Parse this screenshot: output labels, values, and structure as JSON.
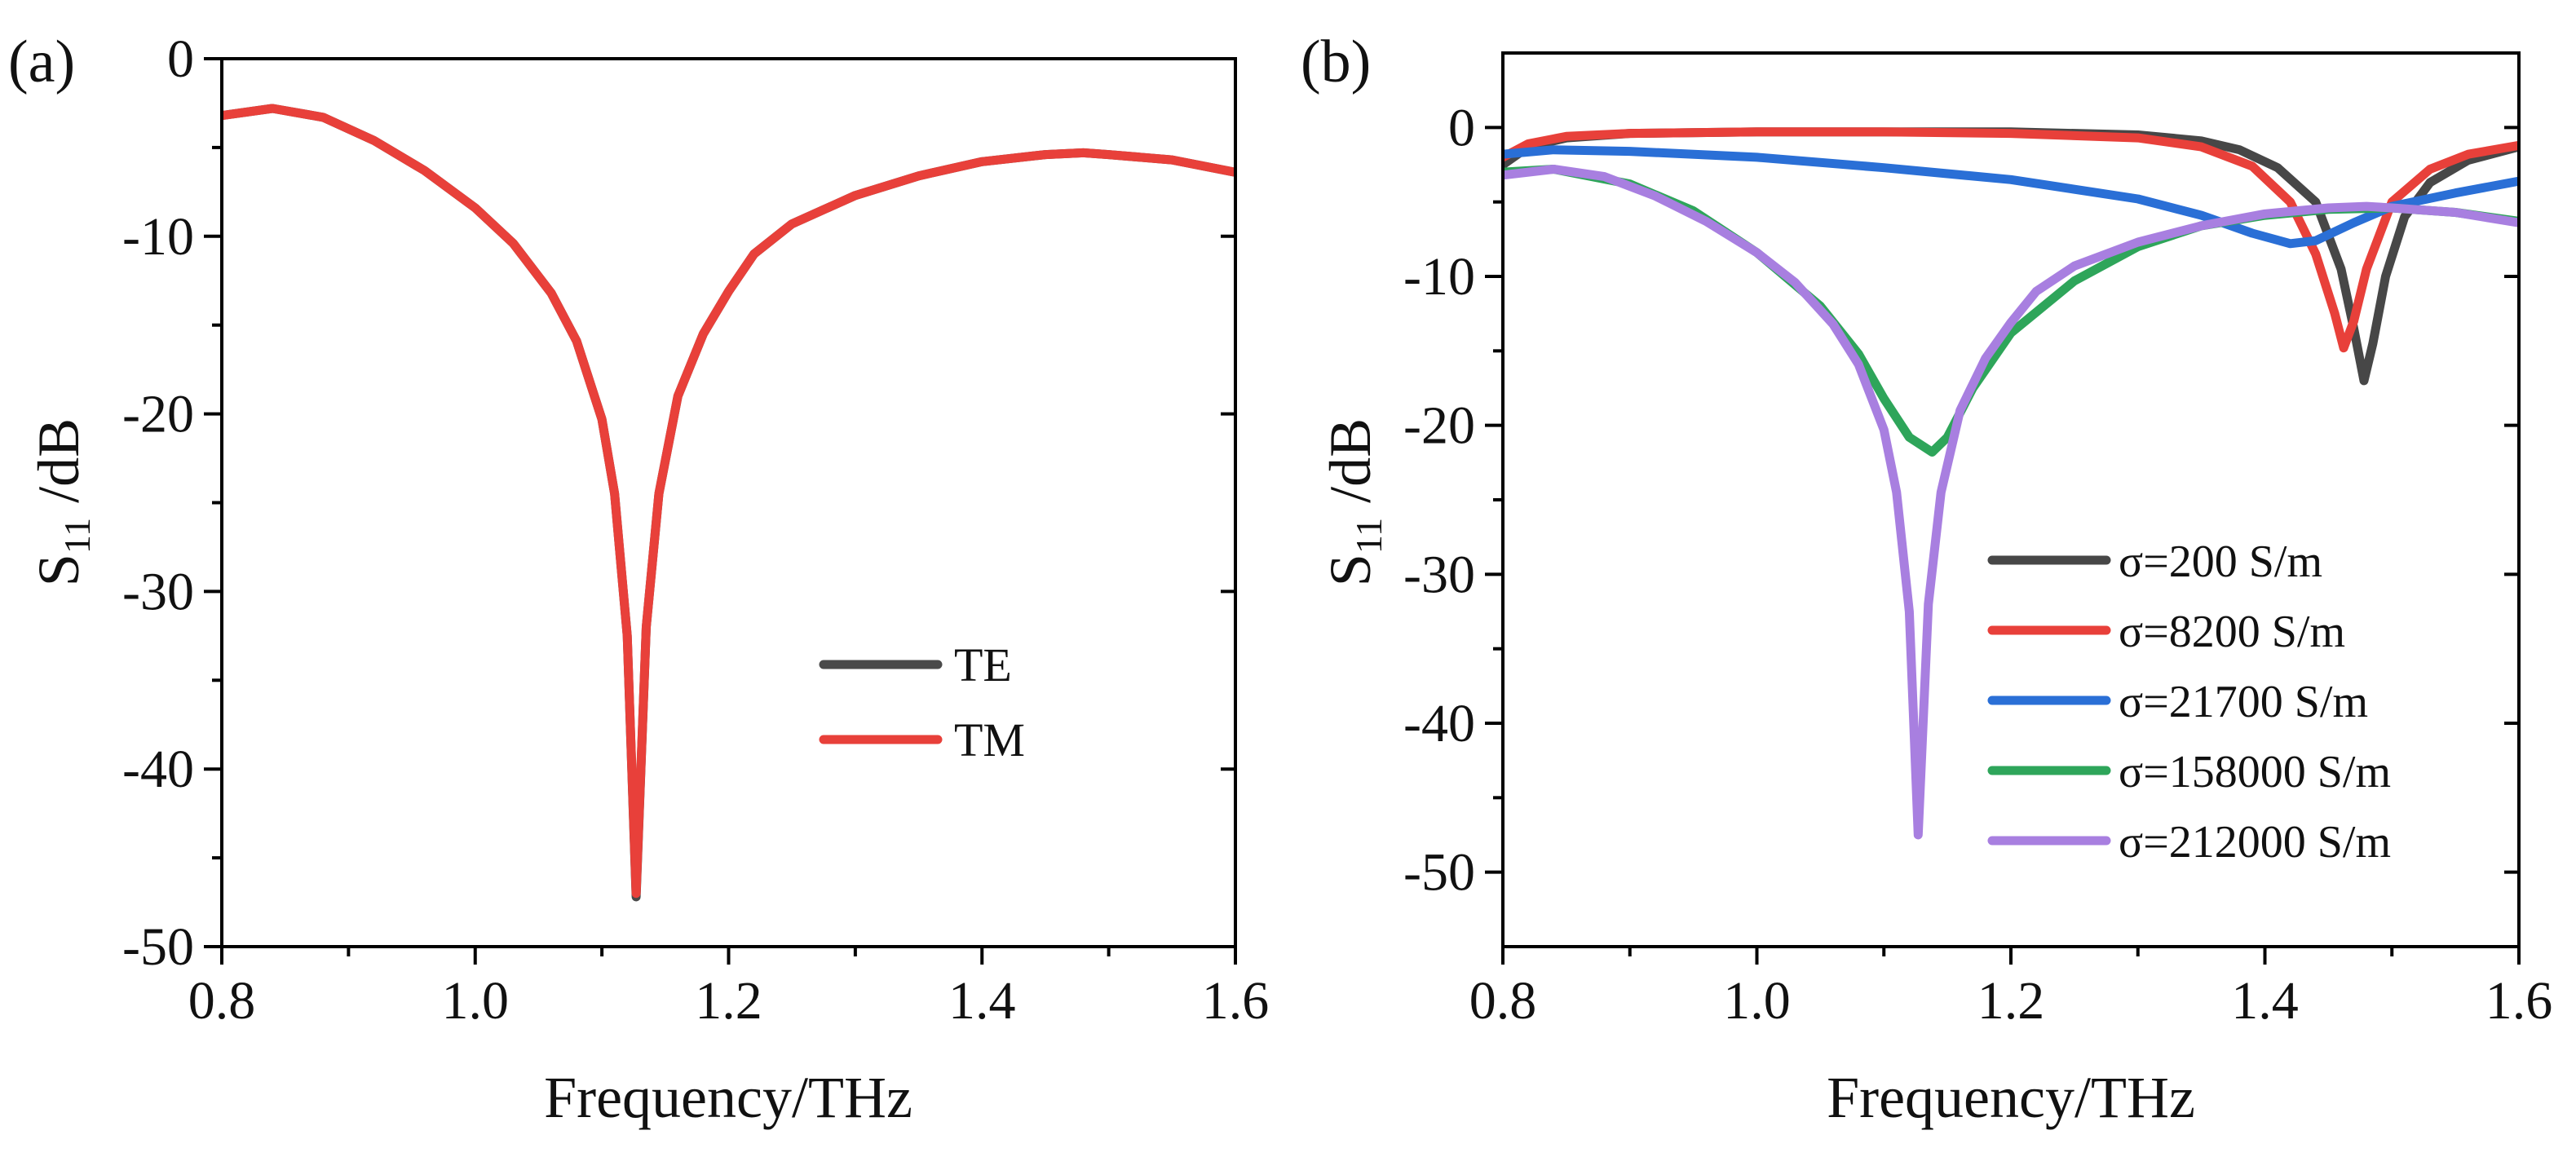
{
  "chart_data": [
    {
      "panel": "(a)",
      "type": "line",
      "title": "",
      "xlabel": "Frequency/THz",
      "ylabel": "S11 /dB",
      "ylabel_parts": {
        "main": "S",
        "sub": "11",
        "rest": " /dB"
      },
      "xlim": [
        0.8,
        1.6
      ],
      "ylim": [
        -50,
        0
      ],
      "xticks": [
        0.8,
        1.0,
        1.2,
        1.4,
        1.6
      ],
      "xtick_labels": [
        "0.8",
        "1.0",
        "1.2",
        "1.4",
        "1.6"
      ],
      "yticks": [
        0,
        -10,
        -20,
        -30,
        -40,
        -50
      ],
      "ytick_labels": [
        "0",
        "-10",
        "-20",
        "-30",
        "-40",
        "-50"
      ],
      "grid": false,
      "legend_position": "lower-right",
      "series": [
        {
          "name": "TE",
          "color": "#4a4a4a",
          "points": [
            [
              0.8,
              -3.2
            ],
            [
              0.84,
              -2.8
            ],
            [
              0.88,
              -3.3
            ],
            [
              0.92,
              -4.6
            ],
            [
              0.96,
              -6.3
            ],
            [
              1.0,
              -8.4
            ],
            [
              1.03,
              -10.4
            ],
            [
              1.06,
              -13.2
            ],
            [
              1.08,
              -15.9
            ],
            [
              1.1,
              -20.3
            ],
            [
              1.11,
              -24.5
            ],
            [
              1.12,
              -32.5
            ],
            [
              1.127,
              -47.2
            ],
            [
              1.135,
              -32.0
            ],
            [
              1.145,
              -24.5
            ],
            [
              1.16,
              -19.0
            ],
            [
              1.18,
              -15.5
            ],
            [
              1.2,
              -13.1
            ],
            [
              1.22,
              -11.0
            ],
            [
              1.25,
              -9.3
            ],
            [
              1.3,
              -7.7
            ],
            [
              1.35,
              -6.6
            ],
            [
              1.4,
              -5.8
            ],
            [
              1.45,
              -5.4
            ],
            [
              1.48,
              -5.3
            ],
            [
              1.5,
              -5.4
            ],
            [
              1.55,
              -5.7
            ],
            [
              1.6,
              -6.4
            ]
          ]
        },
        {
          "name": "TM",
          "color": "#e8403a",
          "points": [
            [
              0.8,
              -3.2
            ],
            [
              0.84,
              -2.8
            ],
            [
              0.88,
              -3.3
            ],
            [
              0.92,
              -4.6
            ],
            [
              0.96,
              -6.3
            ],
            [
              1.0,
              -8.4
            ],
            [
              1.03,
              -10.4
            ],
            [
              1.06,
              -13.2
            ],
            [
              1.08,
              -15.9
            ],
            [
              1.1,
              -20.3
            ],
            [
              1.11,
              -24.5
            ],
            [
              1.12,
              -32.5
            ],
            [
              1.127,
              -47.0
            ],
            [
              1.135,
              -32.0
            ],
            [
              1.145,
              -24.5
            ],
            [
              1.16,
              -19.0
            ],
            [
              1.18,
              -15.5
            ],
            [
              1.2,
              -13.1
            ],
            [
              1.22,
              -11.0
            ],
            [
              1.25,
              -9.3
            ],
            [
              1.3,
              -7.7
            ],
            [
              1.35,
              -6.6
            ],
            [
              1.4,
              -5.8
            ],
            [
              1.45,
              -5.4
            ],
            [
              1.48,
              -5.3
            ],
            [
              1.5,
              -5.4
            ],
            [
              1.55,
              -5.7
            ],
            [
              1.6,
              -6.4
            ]
          ]
        }
      ]
    },
    {
      "panel": "(b)",
      "type": "line",
      "title": "",
      "xlabel": "Frequency/THz",
      "ylabel": "S11 /dB",
      "ylabel_parts": {
        "main": "S",
        "sub": "11",
        "rest": " /dB"
      },
      "xlim": [
        0.8,
        1.6
      ],
      "ylim": [
        -55,
        5
      ],
      "xticks": [
        0.8,
        1.0,
        1.2,
        1.4,
        1.6
      ],
      "xtick_labels": [
        "0.8",
        "1.0",
        "1.2",
        "1.4",
        "1.6"
      ],
      "yticks": [
        0,
        -10,
        -20,
        -30,
        -40,
        -50
      ],
      "ytick_labels": [
        "0",
        "-10",
        "-20",
        "-30",
        "-40",
        "-50"
      ],
      "grid": false,
      "legend_position": "lower-right",
      "series": [
        {
          "name": "σ=200 S/m",
          "color": "#474747",
          "points": [
            [
              0.8,
              -2.5
            ],
            [
              0.82,
              -1.3
            ],
            [
              0.85,
              -0.7
            ],
            [
              0.9,
              -0.4
            ],
            [
              1.0,
              -0.3
            ],
            [
              1.1,
              -0.3
            ],
            [
              1.2,
              -0.3
            ],
            [
              1.3,
              -0.5
            ],
            [
              1.35,
              -0.9
            ],
            [
              1.38,
              -1.5
            ],
            [
              1.41,
              -2.7
            ],
            [
              1.44,
              -5.0
            ],
            [
              1.46,
              -9.5
            ],
            [
              1.47,
              -13.5
            ],
            [
              1.478,
              -17.0
            ],
            [
              1.485,
              -14.5
            ],
            [
              1.495,
              -10.0
            ],
            [
              1.51,
              -6.0
            ],
            [
              1.53,
              -3.7
            ],
            [
              1.56,
              -2.2
            ],
            [
              1.6,
              -1.3
            ]
          ]
        },
        {
          "name": "σ=8200 S/m",
          "color": "#e8403a",
          "points": [
            [
              0.8,
              -2.0
            ],
            [
              0.82,
              -1.1
            ],
            [
              0.85,
              -0.6
            ],
            [
              0.9,
              -0.4
            ],
            [
              1.0,
              -0.3
            ],
            [
              1.1,
              -0.3
            ],
            [
              1.2,
              -0.4
            ],
            [
              1.3,
              -0.7
            ],
            [
              1.35,
              -1.3
            ],
            [
              1.39,
              -2.6
            ],
            [
              1.42,
              -5.0
            ],
            [
              1.44,
              -8.5
            ],
            [
              1.455,
              -12.5
            ],
            [
              1.462,
              -14.8
            ],
            [
              1.47,
              -13.0
            ],
            [
              1.48,
              -9.5
            ],
            [
              1.5,
              -5.0
            ],
            [
              1.53,
              -2.8
            ],
            [
              1.56,
              -1.8
            ],
            [
              1.6,
              -1.2
            ]
          ]
        },
        {
          "name": "σ=21700 S/m",
          "color": "#2a6fd6",
          "points": [
            [
              0.8,
              -1.8
            ],
            [
              0.84,
              -1.5
            ],
            [
              0.9,
              -1.6
            ],
            [
              1.0,
              -2.0
            ],
            [
              1.1,
              -2.7
            ],
            [
              1.2,
              -3.5
            ],
            [
              1.3,
              -4.8
            ],
            [
              1.35,
              -5.9
            ],
            [
              1.39,
              -7.1
            ],
            [
              1.42,
              -7.8
            ],
            [
              1.44,
              -7.6
            ],
            [
              1.47,
              -6.4
            ],
            [
              1.5,
              -5.3
            ],
            [
              1.55,
              -4.4
            ],
            [
              1.6,
              -3.6
            ]
          ]
        },
        {
          "name": "σ=158000 S/m",
          "color": "#2ea55a",
          "points": [
            [
              0.8,
              -3.0
            ],
            [
              0.84,
              -2.8
            ],
            [
              0.9,
              -3.8
            ],
            [
              0.95,
              -5.6
            ],
            [
              1.0,
              -8.4
            ],
            [
              1.05,
              -12.0
            ],
            [
              1.08,
              -15.2
            ],
            [
              1.1,
              -18.2
            ],
            [
              1.12,
              -20.8
            ],
            [
              1.138,
              -21.8
            ],
            [
              1.15,
              -20.8
            ],
            [
              1.17,
              -17.5
            ],
            [
              1.2,
              -13.8
            ],
            [
              1.25,
              -10.3
            ],
            [
              1.3,
              -8.0
            ],
            [
              1.35,
              -6.6
            ],
            [
              1.4,
              -5.9
            ],
            [
              1.45,
              -5.5
            ],
            [
              1.5,
              -5.4
            ],
            [
              1.55,
              -5.7
            ],
            [
              1.6,
              -6.3
            ]
          ]
        },
        {
          "name": "σ=212000 S/m",
          "color": "#a87fe0",
          "points": [
            [
              0.8,
              -3.2
            ],
            [
              0.84,
              -2.8
            ],
            [
              0.88,
              -3.3
            ],
            [
              0.92,
              -4.6
            ],
            [
              0.96,
              -6.3
            ],
            [
              1.0,
              -8.4
            ],
            [
              1.03,
              -10.4
            ],
            [
              1.06,
              -13.2
            ],
            [
              1.08,
              -15.9
            ],
            [
              1.1,
              -20.3
            ],
            [
              1.11,
              -24.5
            ],
            [
              1.12,
              -32.5
            ],
            [
              1.127,
              -47.5
            ],
            [
              1.135,
              -32.0
            ],
            [
              1.145,
              -24.5
            ],
            [
              1.16,
              -19.0
            ],
            [
              1.18,
              -15.5
            ],
            [
              1.2,
              -13.1
            ],
            [
              1.22,
              -11.0
            ],
            [
              1.25,
              -9.3
            ],
            [
              1.3,
              -7.7
            ],
            [
              1.35,
              -6.6
            ],
            [
              1.4,
              -5.8
            ],
            [
              1.45,
              -5.4
            ],
            [
              1.48,
              -5.3
            ],
            [
              1.5,
              -5.4
            ],
            [
              1.55,
              -5.7
            ],
            [
              1.6,
              -6.4
            ]
          ]
        }
      ]
    }
  ]
}
